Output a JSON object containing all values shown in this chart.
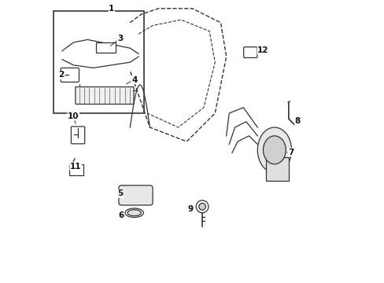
{
  "background_color": "#ffffff",
  "fig_width": 4.89,
  "fig_height": 3.6,
  "dpi": 100
}
